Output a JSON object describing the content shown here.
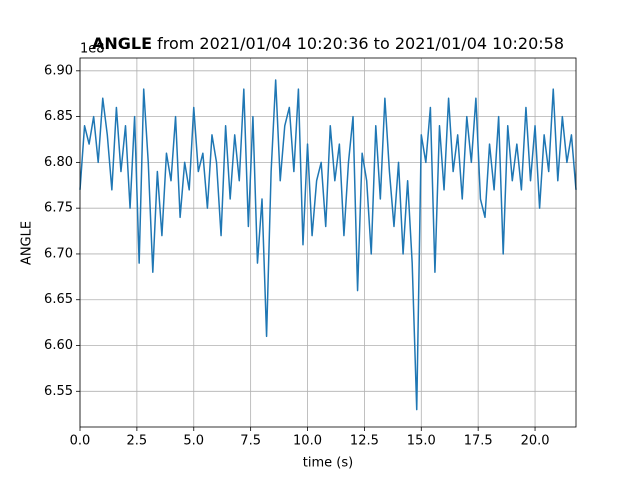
{
  "chart_data": {
    "type": "line",
    "title_bold": "ANGLE",
    "title": "from 2021/01/04 10:20:36 to 2021/01/04 10:20:58",
    "x_label": "time (s)",
    "y_label": "ANGLE",
    "y_offset_label": "1e8",
    "grid": true,
    "xlim": [
      0,
      21.8
    ],
    "ylim": [
      6.511,
      6.914
    ],
    "xticks": [
      {
        "value": 0,
        "label": "0.0"
      },
      2.5,
      {
        "value": 5,
        "label": "5.0"
      },
      7.5,
      {
        "value": 10,
        "label": "10.0"
      },
      12.5,
      {
        "value": 15,
        "label": "15.0"
      },
      17.5,
      {
        "value": 20,
        "label": "20.0"
      }
    ],
    "yticks": [
      6.55,
      {
        "value": 6.6,
        "label": "6.60"
      },
      6.65,
      {
        "value": 6.7,
        "label": "6.70"
      },
      6.75,
      {
        "value": 6.8,
        "label": "6.80"
      },
      6.85,
      {
        "value": 6.9,
        "label": "6.90"
      }
    ],
    "x": [
      0,
      0.2,
      0.4,
      0.6,
      0.8,
      1,
      1.2,
      1.4,
      1.6,
      1.8,
      2,
      2.2,
      2.4,
      2.6,
      2.8,
      3,
      3.2,
      3.4,
      3.6,
      3.8,
      4,
      4.2,
      4.4,
      4.6,
      4.8,
      5,
      5.2,
      5.4,
      5.6,
      5.8,
      6,
      6.2,
      6.4,
      6.6,
      6.8,
      7,
      7.2,
      7.4,
      7.6,
      7.8,
      8,
      8.2,
      8.4,
      8.6,
      8.8,
      9,
      9.2,
      9.4,
      9.6,
      9.8,
      10,
      10.2,
      10.4,
      10.6,
      10.8,
      11,
      11.2,
      11.4,
      11.6,
      11.8,
      12,
      12.2,
      12.4,
      12.6,
      12.8,
      13,
      13.2,
      13.4,
      13.6,
      13.8,
      14,
      14.2,
      14.4,
      14.6,
      14.8,
      15,
      15.2,
      15.4,
      15.6,
      15.8,
      16,
      16.2,
      16.4,
      16.6,
      16.8,
      17,
      17.2,
      17.4,
      17.6,
      17.8,
      18,
      18.2,
      18.4,
      18.6,
      18.8,
      19,
      19.2,
      19.4,
      19.6,
      19.8,
      20,
      20.2,
      20.4,
      20.6,
      20.8,
      21,
      21.2,
      21.4,
      21.6,
      21.8
    ],
    "series": [
      {
        "color": "#1f77b4",
        "values": [
          6.77,
          6.84,
          6.82,
          6.85,
          6.8,
          6.87,
          6.83,
          6.77,
          6.86,
          6.79,
          6.84,
          6.75,
          6.85,
          6.69,
          6.88,
          6.8,
          6.68,
          6.79,
          6.72,
          6.81,
          6.78,
          6.85,
          6.74,
          6.8,
          6.77,
          6.86,
          6.79,
          6.81,
          6.75,
          6.83,
          6.8,
          6.72,
          6.84,
          6.76,
          6.83,
          6.78,
          6.88,
          6.73,
          6.85,
          6.69,
          6.76,
          6.61,
          6.79,
          6.89,
          6.78,
          6.84,
          6.86,
          6.79,
          6.88,
          6.71,
          6.82,
          6.72,
          6.78,
          6.8,
          6.73,
          6.84,
          6.78,
          6.82,
          6.72,
          6.8,
          6.85,
          6.66,
          6.81,
          6.78,
          6.7,
          6.84,
          6.76,
          6.87,
          6.79,
          6.73,
          6.8,
          6.7,
          6.78,
          6.69,
          6.53,
          6.83,
          6.8,
          6.86,
          6.68,
          6.84,
          6.77,
          6.87,
          6.79,
          6.83,
          6.76,
          6.85,
          6.8,
          6.87,
          6.76,
          6.74,
          6.82,
          6.77,
          6.85,
          6.7,
          6.84,
          6.78,
          6.82,
          6.77,
          6.86,
          6.78,
          6.84,
          6.75,
          6.83,
          6.79,
          6.88,
          6.78,
          6.85,
          6.8,
          6.83,
          6.77
        ]
      }
    ]
  }
}
